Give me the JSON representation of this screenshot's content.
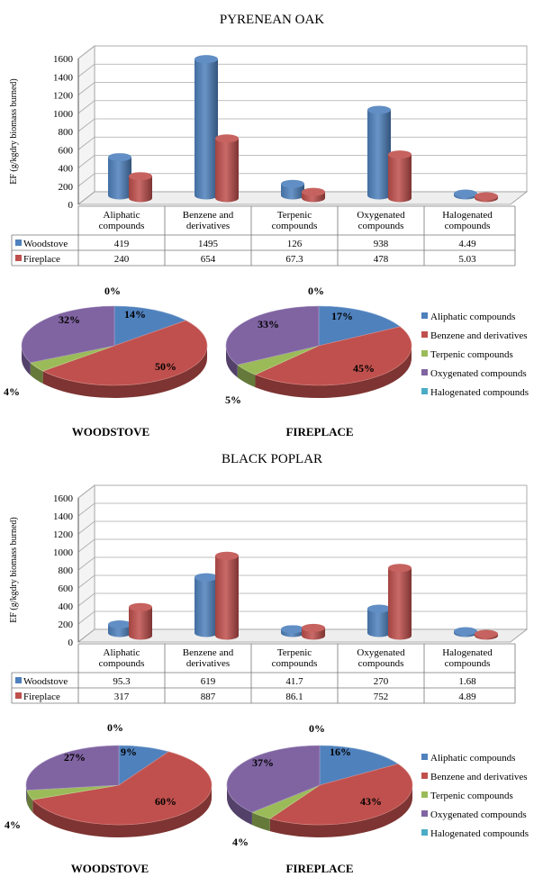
{
  "colors": {
    "woodstove": "#4f81bd",
    "fireplace": "#c0504d",
    "aliphatic": "#4f81bd",
    "benzene": "#c0504d",
    "terpenic": "#9bbb59",
    "oxygenated": "#8064a2",
    "halogenated": "#4bacc6"
  },
  "legend_labels": [
    "Aliphatic compounds",
    "Benzene and derivatives",
    "Terpenic compounds",
    "Oxygenated compounds",
    "Halogenated compounds"
  ],
  "chart_data": [
    {
      "type": "bar",
      "title": "PYRENEAN OAK",
      "ylabel": "EF (g/kgdry biomass burned)",
      "ylim": [
        0,
        1600
      ],
      "yticks": [
        0,
        200,
        400,
        600,
        800,
        1000,
        1200,
        1400,
        1600
      ],
      "categories": [
        [
          "Aliphatic",
          "compounds"
        ],
        [
          "Benzene and",
          "derivatives"
        ],
        [
          "Terpenic",
          "compounds"
        ],
        [
          "Oxygenated",
          "compounds"
        ],
        [
          "Halogenated",
          "compounds"
        ]
      ],
      "series": [
        {
          "name": "Woodstove",
          "values": [
            419,
            1495,
            126,
            938,
            4.49
          ],
          "labels": [
            "419",
            "1495",
            "126",
            "938",
            "4.49"
          ]
        },
        {
          "name": "Fireplace",
          "values": [
            240,
            654,
            67.3,
            478,
            5.03
          ],
          "labels": [
            "240",
            "654",
            "67.3",
            "478",
            "5.03"
          ]
        }
      ],
      "grid": true,
      "data_table": true
    },
    {
      "type": "pie",
      "title": "WOODSTOVE",
      "source": "PYRENEAN OAK",
      "slices": [
        {
          "name": "Aliphatic compounds",
          "value": 14,
          "label": "14%"
        },
        {
          "name": "Benzene and derivatives",
          "value": 50,
          "label": "50%"
        },
        {
          "name": "Terpenic compounds",
          "value": 4,
          "label": "4%"
        },
        {
          "name": "Oxygenated compounds",
          "value": 32,
          "label": "32%"
        },
        {
          "name": "Halogenated compounds",
          "value": 0,
          "label": "0%"
        }
      ]
    },
    {
      "type": "pie",
      "title": "FIREPLACE",
      "source": "PYRENEAN OAK",
      "slices": [
        {
          "name": "Aliphatic compounds",
          "value": 17,
          "label": "17%"
        },
        {
          "name": "Benzene and derivatives",
          "value": 45,
          "label": "45%"
        },
        {
          "name": "Terpenic compounds",
          "value": 5,
          "label": "5%"
        },
        {
          "name": "Oxygenated compounds",
          "value": 33,
          "label": "33%"
        },
        {
          "name": "Halogenated compounds",
          "value": 0,
          "label": "0%"
        }
      ],
      "legend": "right"
    },
    {
      "type": "bar",
      "title": "BLACK POPLAR",
      "ylabel": "EF (g/kgdry biomass burned)",
      "ylim": [
        0,
        1600
      ],
      "yticks": [
        0,
        200,
        400,
        600,
        800,
        1000,
        1200,
        1400,
        1600
      ],
      "categories": [
        [
          "Aliphatic",
          "compounds"
        ],
        [
          "Benzene and",
          "derivatives"
        ],
        [
          "Terpenic",
          "compounds"
        ],
        [
          "Oxygenated",
          "compounds"
        ],
        [
          "Halogenated",
          "compounds"
        ]
      ],
      "series": [
        {
          "name": "Woodstove",
          "values": [
            95.3,
            619,
            41.7,
            270,
            1.68
          ],
          "labels": [
            "95.3",
            "619",
            "41.7",
            "270",
            "1.68"
          ]
        },
        {
          "name": "Fireplace",
          "values": [
            317,
            887,
            86.1,
            752,
            4.89
          ],
          "labels": [
            "317",
            "887",
            "86.1",
            "752",
            "4.89"
          ]
        }
      ],
      "grid": true,
      "data_table": true
    },
    {
      "type": "pie",
      "title": "WOODSTOVE",
      "source": "BLACK POPLAR",
      "slices": [
        {
          "name": "Aliphatic compounds",
          "value": 9,
          "label": "9%"
        },
        {
          "name": "Benzene and derivatives",
          "value": 60,
          "label": "60%"
        },
        {
          "name": "Terpenic compounds",
          "value": 4,
          "label": "4%"
        },
        {
          "name": "Oxygenated compounds",
          "value": 27,
          "label": "27%"
        },
        {
          "name": "Halogenated compounds",
          "value": 0,
          "label": "0%"
        }
      ]
    },
    {
      "type": "pie",
      "title": "FIREPLACE",
      "source": "BLACK POPLAR",
      "slices": [
        {
          "name": "Aliphatic compounds",
          "value": 16,
          "label": "16%"
        },
        {
          "name": "Benzene and derivatives",
          "value": 43,
          "label": "43%"
        },
        {
          "name": "Terpenic compounds",
          "value": 4,
          "label": "4%"
        },
        {
          "name": "Oxygenated compounds",
          "value": 37,
          "label": "37%"
        },
        {
          "name": "Halogenated compounds",
          "value": 0,
          "label": "0%"
        }
      ],
      "legend": "right"
    }
  ]
}
